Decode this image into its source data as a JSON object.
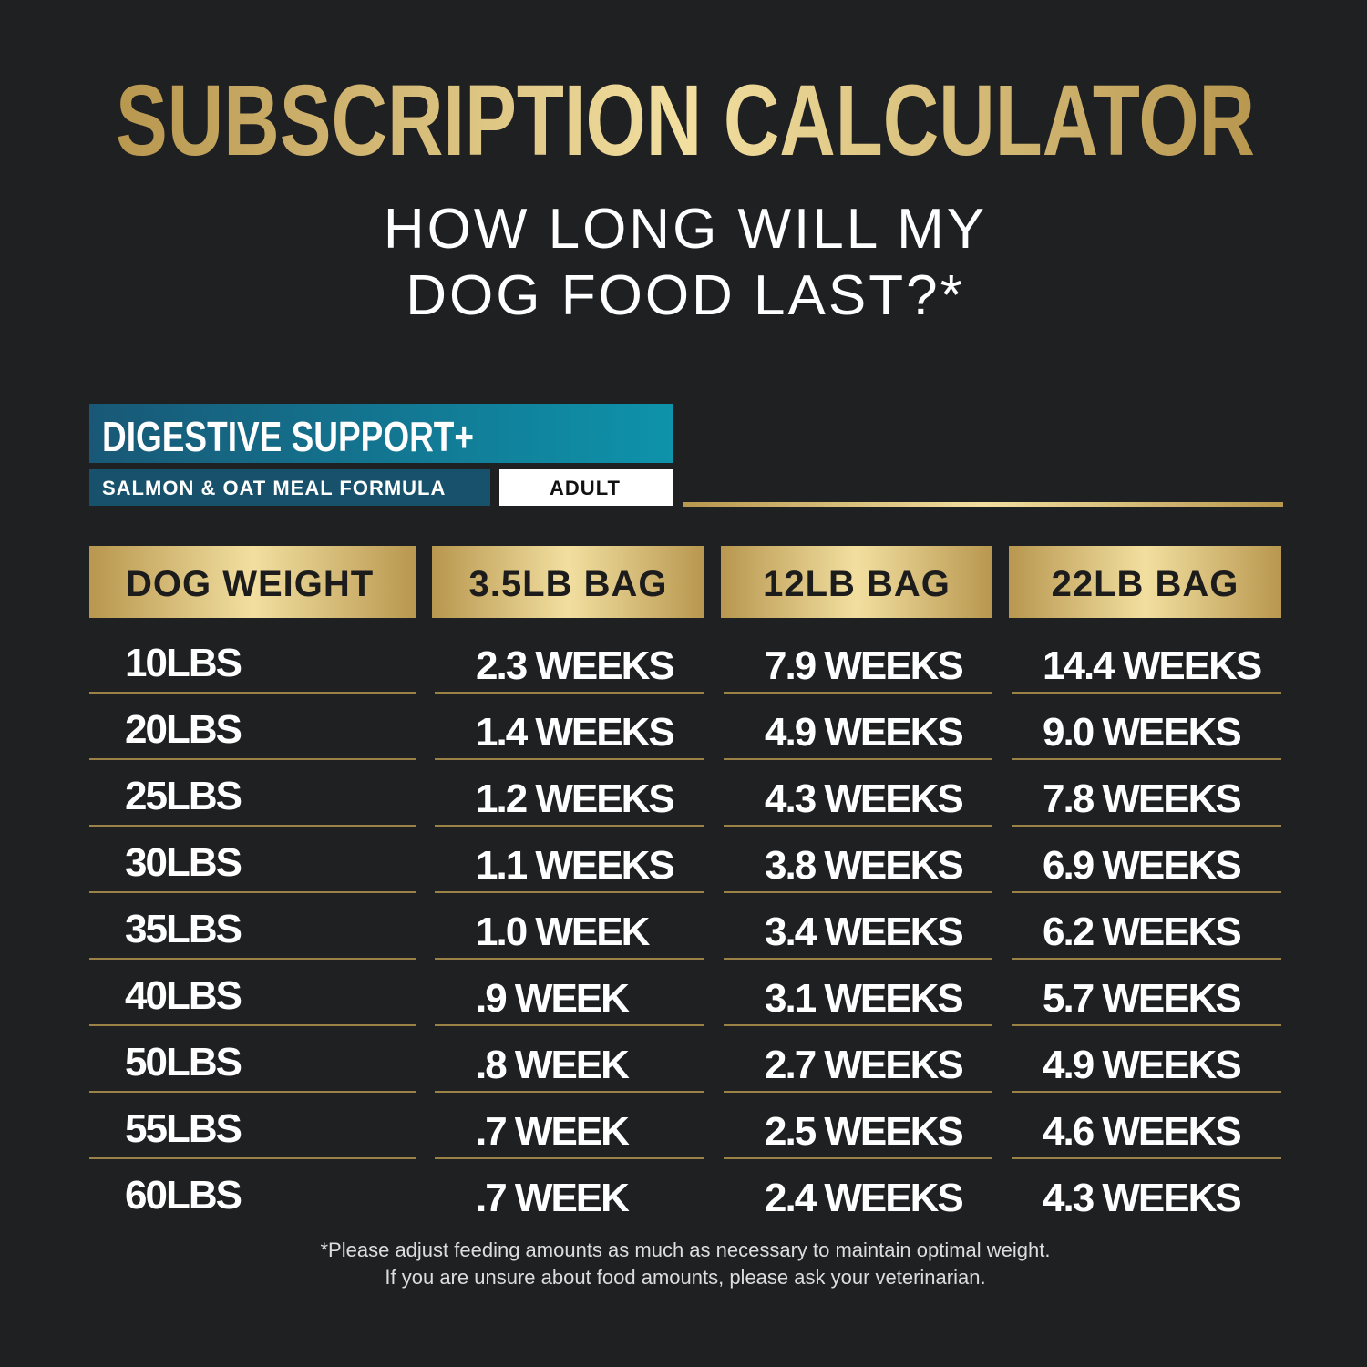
{
  "title": "SUBSCRIPTION CALCULATOR",
  "subtitle": [
    "HOW LONG WILL MY",
    "DOG FOOD LAST?*"
  ],
  "product": {
    "name": "DIGESTIVE SUPPORT+",
    "formula": "SALMON & OAT MEAL FORMULA",
    "life_stage": "ADULT"
  },
  "table": {
    "headers": [
      "DOG WEIGHT",
      "3.5LB BAG",
      "12LB BAG",
      "22LB BAG"
    ],
    "rows": [
      [
        "10LBS",
        "2.3 WEEKS",
        "7.9 WEEKS",
        "14.4 WEEKS"
      ],
      [
        "20LBS",
        "1.4 WEEKS",
        "4.9 WEEKS",
        "9.0 WEEKS"
      ],
      [
        "25LBS",
        "1.2 WEEKS",
        "4.3 WEEKS",
        "7.8 WEEKS"
      ],
      [
        "30LBS",
        "1.1 WEEKS",
        "3.8 WEEKS",
        "6.9 WEEKS"
      ],
      [
        "35LBS",
        "1.0 WEEK",
        "3.4 WEEKS",
        "6.2 WEEKS"
      ],
      [
        "40LBS",
        ".9 WEEK",
        "3.1 WEEKS",
        "5.7 WEEKS"
      ],
      [
        "50LBS",
        ".8 WEEK",
        "2.7 WEEKS",
        "4.9 WEEKS"
      ],
      [
        "55LBS",
        ".7 WEEK",
        "2.5 WEEKS",
        "4.6 WEEKS"
      ],
      [
        "60LBS",
        ".7 WEEK",
        "2.4 WEEKS",
        "4.3 WEEKS"
      ]
    ]
  },
  "footnote": [
    "*Please adjust feeding amounts as much as necessary to maintain optimal weight.",
    "If you are unsure about food amounts, please ask your veterinarian."
  ]
}
